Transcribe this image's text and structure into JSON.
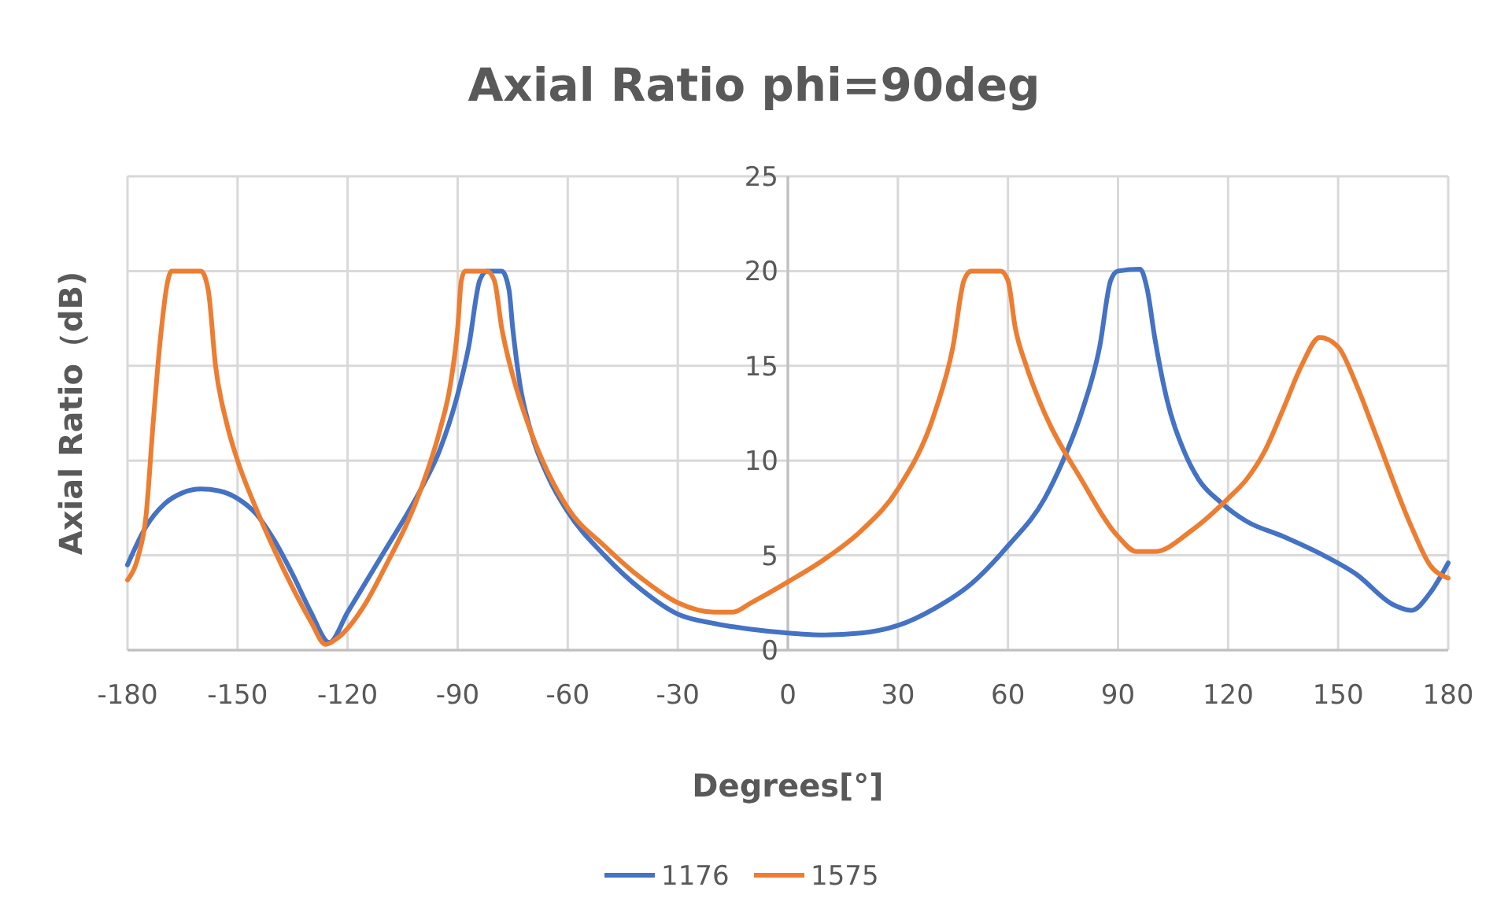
{
  "chart_data": {
    "type": "line",
    "title": "Axial Ratio phi=90deg",
    "xlabel": "Degrees[°]",
    "ylabel": "Axial Ratio（dB)",
    "xlim": [
      -180,
      180
    ],
    "xticks": [
      -180,
      -150,
      -120,
      -90,
      -60,
      -30,
      0,
      30,
      60,
      90,
      120,
      150,
      180
    ],
    "ylim": [
      0,
      25
    ],
    "yticks": [
      0,
      5,
      10,
      15,
      20,
      25
    ],
    "grid": true,
    "legend": "bottom",
    "line_style": "solid",
    "series": [
      {
        "name": "1176",
        "color": "#4472c4",
        "x": [
          -180,
          -175,
          -170,
          -165,
          -160,
          -155,
          -150,
          -145,
          -140,
          -135,
          -130,
          -125,
          -120,
          -110,
          -100,
          -95,
          -90,
          -87,
          -84,
          -82,
          -78,
          -76,
          -75,
          -73,
          -70,
          -65,
          -60,
          -50,
          -40,
          -30,
          -20,
          -10,
          0,
          10,
          20,
          30,
          40,
          50,
          60,
          70,
          75,
          80,
          85,
          88,
          90,
          96,
          98,
          100,
          103,
          108,
          112,
          118,
          125,
          135,
          145,
          155,
          165,
          170,
          175,
          180
        ],
        "values": [
          4.5,
          6.5,
          7.7,
          8.3,
          8.5,
          8.4,
          8,
          7.2,
          5.8,
          4,
          2,
          0.4,
          2,
          5.2,
          8.5,
          10.5,
          13.5,
          16,
          19.5,
          20,
          20,
          19,
          17,
          14,
          11.5,
          9,
          7.3,
          5,
          3.2,
          1.9,
          1.4,
          1.1,
          0.9,
          0.8,
          0.9,
          1.3,
          2.2,
          3.5,
          5.5,
          8,
          10,
          12.5,
          16,
          19.5,
          20,
          20.1,
          19,
          16.5,
          13.5,
          10.5,
          9,
          7.8,
          6.8,
          6,
          5.1,
          4,
          2.4,
          2.1,
          3,
          4.6
        ]
      },
      {
        "name": "1575",
        "color": "#ed7d31",
        "x": [
          -180,
          -177,
          -175,
          -173,
          -171,
          -169,
          -168,
          -164,
          -160,
          -158,
          -156,
          -153,
          -150,
          -145,
          -140,
          -135,
          -130,
          -126,
          -123,
          -115,
          -110,
          -100,
          -95,
          -92,
          -90,
          -89,
          -88,
          -85,
          -82,
          -80,
          -78,
          -75,
          -70,
          -60,
          -50,
          -40,
          -30,
          -20,
          -15,
          -10,
          0,
          10,
          20,
          30,
          40,
          45,
          48,
          50,
          58,
          60,
          62,
          65,
          70,
          80,
          90,
          95,
          100,
          110,
          120,
          125,
          130,
          135,
          140,
          145,
          150,
          155,
          160,
          170,
          175,
          180
        ],
        "values": [
          3.7,
          5,
          7,
          12,
          16.5,
          19.5,
          20,
          20,
          20,
          19,
          15,
          12,
          10,
          7.5,
          5.3,
          3.3,
          1.5,
          0.3,
          0.6,
          2.5,
          4.3,
          8.5,
          11.5,
          14,
          17,
          19.5,
          20,
          20,
          20,
          19.5,
          17,
          14.5,
          11.5,
          7.5,
          5.5,
          3.8,
          2.5,
          2,
          2,
          2.5,
          3.6,
          4.8,
          6.3,
          8.5,
          12.5,
          16,
          19.5,
          20,
          20,
          19.5,
          17,
          15,
          12.5,
          9,
          6,
          5.2,
          5.2,
          6.3,
          8,
          9,
          10.5,
          12.7,
          15,
          16.5,
          16,
          14,
          11.5,
          6.5,
          4.5,
          3.8
        ]
      }
    ]
  }
}
